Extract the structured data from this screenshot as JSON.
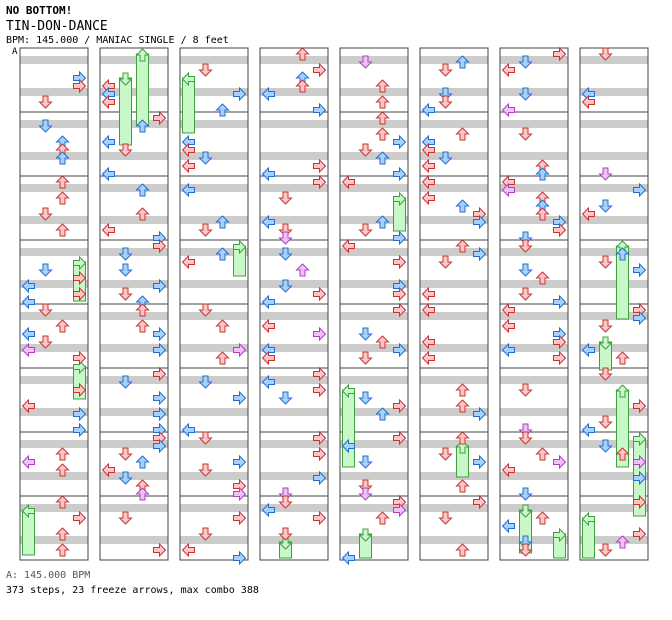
{
  "header": {
    "no_bottom": "NO BOTTOM!",
    "title": "TIN-DON-DANCE",
    "meta": "BPM: 145.000 / MANIAC SINGLE / 8 feet",
    "section_marker": "A"
  },
  "footer": {
    "bpm_line": "A: 145.000 BPM",
    "stats_line": "373 steps, 23 freeze arrows, max combo 388"
  },
  "colors": {
    "stripe": "#cccccc",
    "border": "#444444",
    "quarter_fill": "#f8c8c8",
    "quarter_stroke": "#d03030",
    "eighth_fill": "#a8d0ff",
    "eighth_stroke": "#2070d0",
    "sixteenth_fill": "#f0c0f8",
    "sixteenth_stroke": "#b040c0",
    "freeze_fill": "#c8f8c8",
    "freeze_stroke": "#40a040"
  },
  "chart": {
    "lanes": [
      "left",
      "down",
      "up",
      "right"
    ],
    "columns": 8,
    "measures_per_column": 8,
    "freeze_count": 23
  }
}
